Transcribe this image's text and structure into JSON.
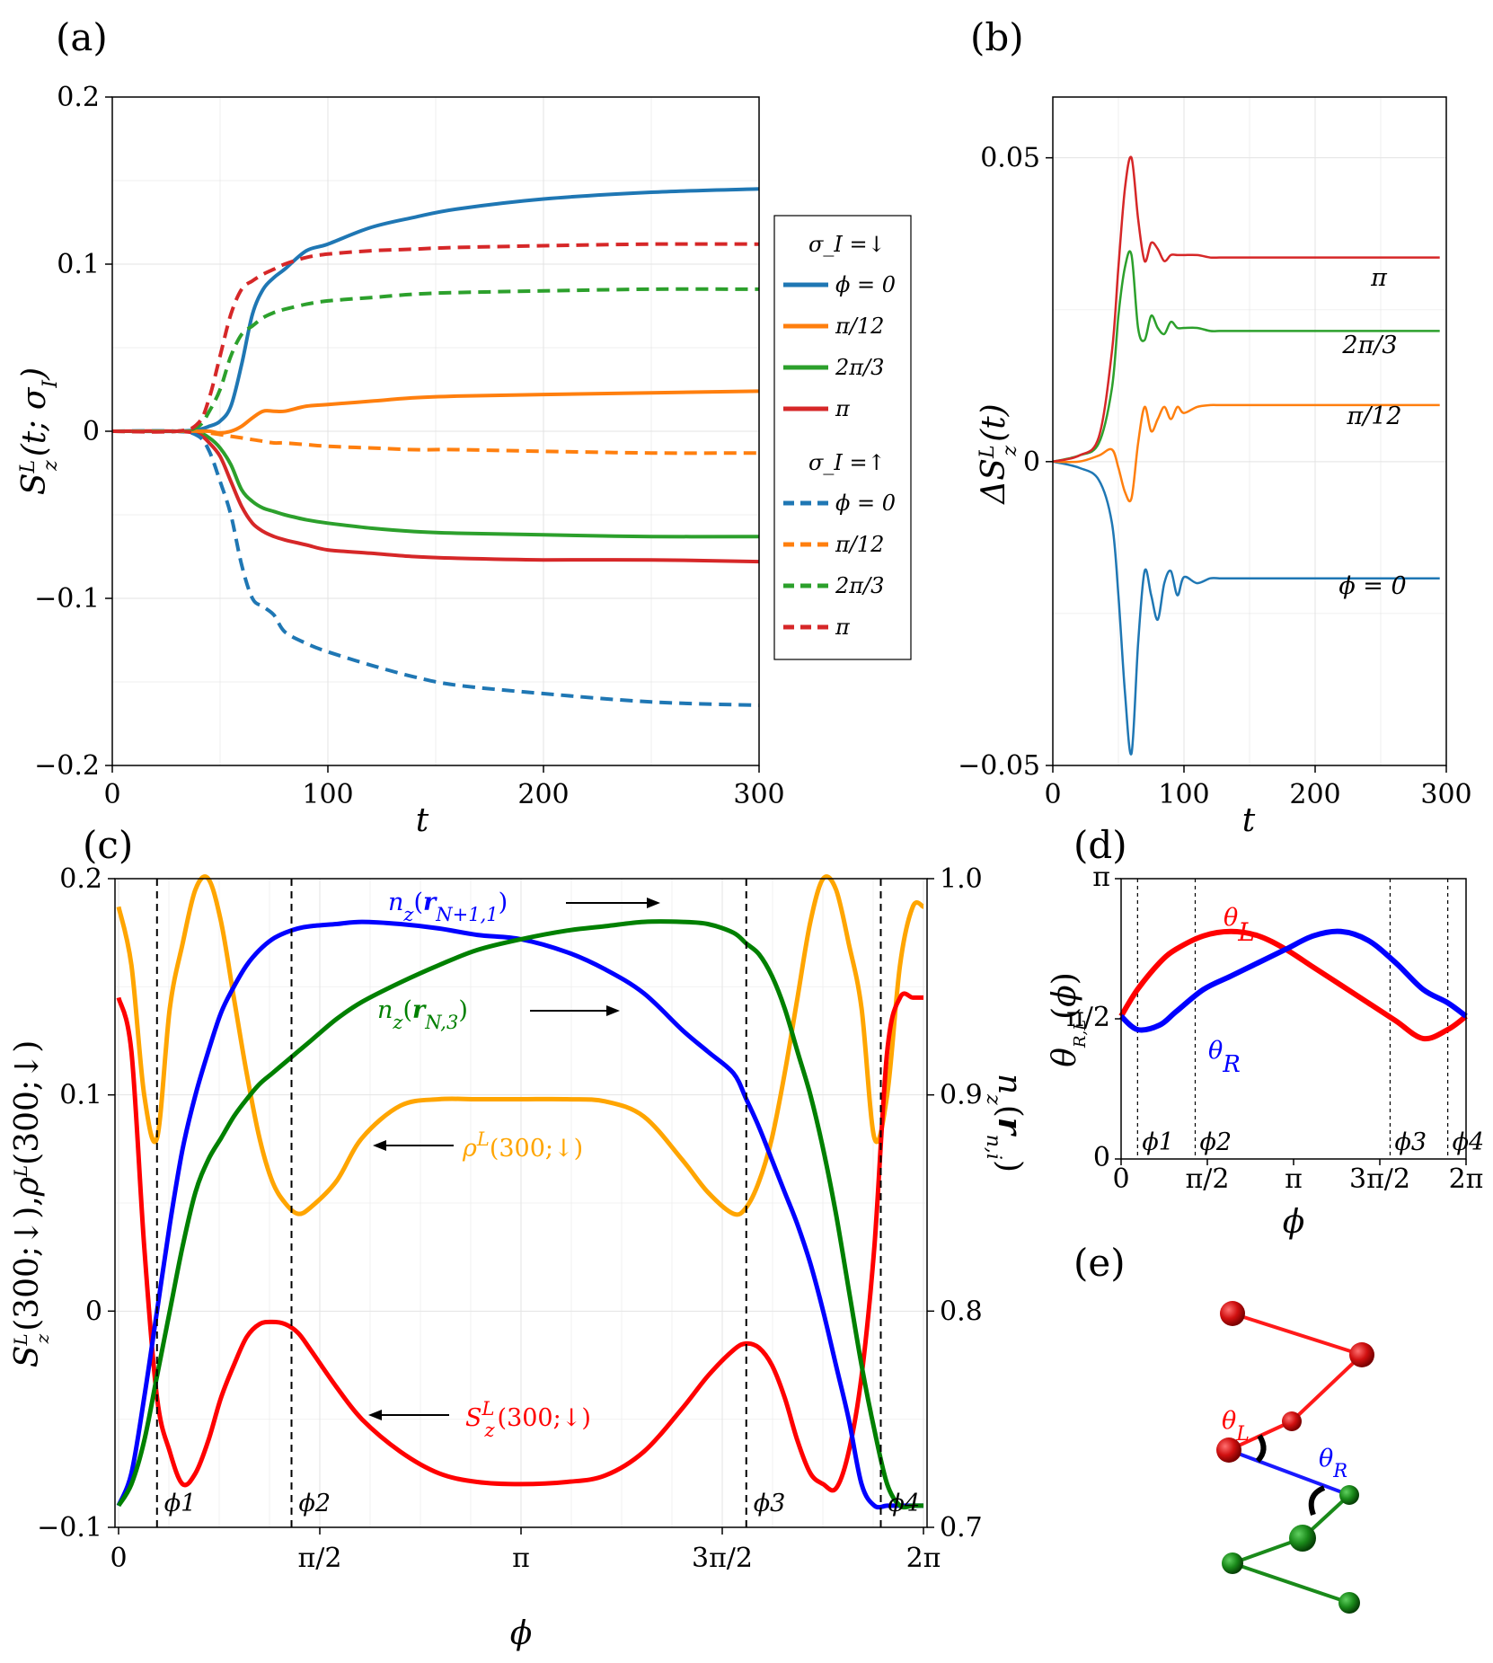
{
  "chart_data": [
    {
      "panel": "(a)",
      "type": "line",
      "xlabel": "t",
      "ylabel": "S_z^L(t; σ_I)",
      "xlim": [
        0,
        300
      ],
      "ylim": [
        -0.2,
        0.2
      ],
      "xticks": [
        "0",
        "100",
        "200",
        "300"
      ],
      "yticks": [
        "−0.2",
        "−0.1",
        "0",
        "0.1",
        "0.2"
      ],
      "legend": {
        "position": "right, outside",
        "group_down": "σ_I =↓",
        "group_up": "σ_I =↑",
        "labels": [
          "ϕ = 0",
          "π/12",
          "2π/3",
          "π"
        ]
      },
      "x": [
        0,
        30,
        40,
        45,
        50,
        55,
        60,
        65,
        70,
        75,
        80,
        90,
        100,
        120,
        140,
        160,
        200,
        250,
        300
      ],
      "series": [
        {
          "name": "ϕ = 0 (σ_I =↓)",
          "color": "#1f77b4",
          "style": "solid",
          "values": [
            0,
            0,
            0.001,
            0.003,
            0.006,
            0.015,
            0.04,
            0.07,
            0.085,
            0.092,
            0.097,
            0.108,
            0.112,
            0.122,
            0.128,
            0.133,
            0.139,
            0.143,
            0.145
          ]
        },
        {
          "name": "π/12 (σ_I =↓)",
          "color": "#ff7f0e",
          "style": "solid",
          "values": [
            0,
            0,
            0,
            0,
            -0.001,
            0,
            0.003,
            0.008,
            0.012,
            0.012,
            0.012,
            0.015,
            0.016,
            0.018,
            0.02,
            0.021,
            0.022,
            0.023,
            0.024
          ]
        },
        {
          "name": "2π/3 (σ_I =↓)",
          "color": "#2ca02c",
          "style": "solid",
          "values": [
            0,
            0,
            -0.001,
            -0.004,
            -0.01,
            -0.02,
            -0.035,
            -0.042,
            -0.046,
            -0.048,
            -0.05,
            -0.053,
            -0.055,
            -0.058,
            -0.06,
            -0.061,
            -0.062,
            -0.063,
            -0.063
          ]
        },
        {
          "name": "π (σ_I =↓)",
          "color": "#d62728",
          "style": "solid",
          "values": [
            0,
            0,
            -0.002,
            -0.007,
            -0.015,
            -0.03,
            -0.045,
            -0.055,
            -0.06,
            -0.063,
            -0.065,
            -0.068,
            -0.071,
            -0.073,
            -0.075,
            -0.076,
            -0.077,
            -0.077,
            -0.078
          ]
        },
        {
          "name": "ϕ = 0 (σ_I =↑)",
          "color": "#1f77b4",
          "style": "dashed",
          "values": [
            0,
            0,
            -0.003,
            -0.012,
            -0.03,
            -0.05,
            -0.08,
            -0.1,
            -0.105,
            -0.11,
            -0.12,
            -0.127,
            -0.132,
            -0.14,
            -0.147,
            -0.152,
            -0.157,
            -0.162,
            -0.164
          ]
        },
        {
          "name": "π/12 (σ_I =↑)",
          "color": "#ff7f0e",
          "style": "dashed",
          "values": [
            0,
            0,
            0,
            -0.001,
            -0.002,
            -0.003,
            -0.004,
            -0.005,
            -0.006,
            -0.007,
            -0.007,
            -0.008,
            -0.009,
            -0.01,
            -0.011,
            -0.011,
            -0.012,
            -0.013,
            -0.013
          ]
        },
        {
          "name": "2π/3 (σ_I =↑)",
          "color": "#2ca02c",
          "style": "dashed",
          "values": [
            0,
            0,
            0.003,
            0.012,
            0.025,
            0.045,
            0.058,
            0.063,
            0.068,
            0.071,
            0.073,
            0.076,
            0.078,
            0.08,
            0.082,
            0.083,
            0.084,
            0.085,
            0.085
          ]
        },
        {
          "name": "π (σ_I =↑)",
          "color": "#d62728",
          "style": "dashed",
          "values": [
            0,
            0,
            0.005,
            0.02,
            0.045,
            0.07,
            0.085,
            0.09,
            0.094,
            0.097,
            0.1,
            0.104,
            0.106,
            0.108,
            0.109,
            0.11,
            0.111,
            0.112,
            0.112
          ]
        }
      ]
    },
    {
      "panel": "(b)",
      "type": "line",
      "xlabel": "t",
      "ylabel": "ΔS_z^L(t)",
      "xlim": [
        0,
        300
      ],
      "ylim": [
        -0.05,
        0.06
      ],
      "xticks": [
        "0",
        "100",
        "200",
        "300"
      ],
      "yticks": [
        "−0.05",
        "0",
        "0.05"
      ],
      "x": [
        0,
        20,
        35,
        45,
        50,
        55,
        60,
        65,
        70,
        75,
        80,
        85,
        90,
        95,
        100,
        110,
        120,
        150,
        200,
        250,
        300
      ],
      "series": [
        {
          "name": "ϕ = 0",
          "color": "#1f77b4",
          "values": [
            0,
            -0.001,
            -0.003,
            -0.01,
            -0.022,
            -0.038,
            -0.048,
            -0.03,
            -0.018,
            -0.022,
            -0.026,
            -0.02,
            -0.018,
            -0.022,
            -0.019,
            -0.02,
            -0.018,
            -0.019,
            -0.018,
            -0.018,
            -0.018
          ]
        },
        {
          "name": "π/12",
          "color": "#ff7f0e",
          "values": [
            0,
            0,
            0.001,
            0.002,
            -0.001,
            -0.005,
            -0.006,
            0.003,
            0.009,
            0.005,
            0.007,
            0.009,
            0.007,
            0.009,
            0.008,
            0.009,
            0.0095,
            0.0095,
            0.01,
            0.01,
            0.01
          ]
        },
        {
          "name": "2π/3",
          "color": "#2ca02c",
          "values": [
            0,
            0.001,
            0.003,
            0.012,
            0.024,
            0.032,
            0.034,
            0.022,
            0.02,
            0.024,
            0.022,
            0.021,
            0.023,
            0.022,
            0.022,
            0.022,
            0.022,
            0.022,
            0.022,
            0.022,
            0.022
          ]
        },
        {
          "name": "π",
          "color": "#d62728",
          "values": [
            0,
            0.001,
            0.004,
            0.018,
            0.032,
            0.045,
            0.05,
            0.04,
            0.033,
            0.036,
            0.035,
            0.033,
            0.034,
            0.034,
            0.034,
            0.034,
            0.034,
            0.034,
            0.034,
            0.034,
            0.034
          ]
        }
      ],
      "annotations": [
        "π",
        "2π/3",
        "π/12",
        "ϕ = 0"
      ]
    },
    {
      "panel": "(c)",
      "type": "line",
      "xlabel": "ϕ",
      "ylabel_left": "S_z^L(300;↓), ρ^L(300;↓)",
      "ylabel_right": "n_z(r_{n,i})",
      "xlim": [
        0,
        6.2832
      ],
      "ylim_left": [
        -0.1,
        0.2
      ],
      "ylim_right": [
        0.7,
        1.0
      ],
      "xticks": [
        "0",
        "π/2",
        "π",
        "3π/2",
        "2π"
      ],
      "yticks_left": [
        "−0.1",
        "0",
        "0.1",
        "0.2"
      ],
      "yticks_right": [
        "0.7",
        "0.8",
        "0.9",
        "1.0"
      ],
      "vlines": {
        "labels": [
          "ϕ1",
          "ϕ2",
          "ϕ3",
          "ϕ4"
        ],
        "values": [
          0.3,
          1.35,
          4.9,
          5.95
        ]
      },
      "x": [
        0,
        0.1,
        0.2,
        0.3,
        0.4,
        0.5,
        0.6,
        0.7,
        0.8,
        0.9,
        1.0,
        1.1,
        1.2,
        1.3,
        1.4,
        1.5,
        1.7,
        1.9,
        2.2,
        2.5,
        2.8,
        3.1416,
        3.5,
        3.8,
        4.1,
        4.4,
        4.6,
        4.8,
        4.9,
        5.0,
        5.1,
        5.2,
        5.3,
        5.4,
        5.5,
        5.6,
        5.7,
        5.8,
        5.9,
        6.0,
        6.1,
        6.2,
        6.2832
      ],
      "series": [
        {
          "name": "ρ^L(300;↓)",
          "label": "ρ^L(300;↓)",
          "color": "#ffa500",
          "axis": "left",
          "values": [
            0.187,
            0.16,
            0.1,
            0.08,
            0.14,
            0.17,
            0.195,
            0.2,
            0.18,
            0.145,
            0.11,
            0.08,
            0.06,
            0.05,
            0.045,
            0.048,
            0.06,
            0.08,
            0.095,
            0.098,
            0.098,
            0.098,
            0.098,
            0.097,
            0.09,
            0.07,
            0.055,
            0.045,
            0.048,
            0.06,
            0.08,
            0.11,
            0.145,
            0.18,
            0.2,
            0.195,
            0.17,
            0.14,
            0.08,
            0.1,
            0.16,
            0.187,
            0.187
          ]
        },
        {
          "name": "S_z^L(300;↓)",
          "label": "S_z^L(300;↓)",
          "color": "#ff0000",
          "axis": "left",
          "values": [
            0.145,
            0.12,
            0.03,
            -0.04,
            -0.065,
            -0.08,
            -0.075,
            -0.06,
            -0.04,
            -0.025,
            -0.012,
            -0.006,
            -0.005,
            -0.006,
            -0.01,
            -0.018,
            -0.035,
            -0.05,
            -0.065,
            -0.075,
            -0.079,
            -0.08,
            -0.079,
            -0.076,
            -0.065,
            -0.045,
            -0.03,
            -0.018,
            -0.015,
            -0.017,
            -0.025,
            -0.04,
            -0.06,
            -0.075,
            -0.08,
            -0.082,
            -0.065,
            -0.03,
            0.03,
            0.12,
            0.145,
            0.145,
            0.145
          ]
        },
        {
          "name": "n_z(r_{N+1,1})",
          "label": "n_z(r_{N+1,1})",
          "color": "#0000ff",
          "axis": "right",
          "values": [
            0.71,
            0.725,
            0.76,
            0.8,
            0.84,
            0.875,
            0.9,
            0.92,
            0.938,
            0.95,
            0.96,
            0.967,
            0.972,
            0.975,
            0.977,
            0.978,
            0.979,
            0.98,
            0.979,
            0.977,
            0.974,
            0.972,
            0.966,
            0.958,
            0.947,
            0.93,
            0.92,
            0.91,
            0.898,
            0.885,
            0.87,
            0.855,
            0.84,
            0.822,
            0.8,
            0.775,
            0.75,
            0.72,
            0.71,
            0.71,
            0.71,
            0.71,
            0.71
          ]
        },
        {
          "name": "n_z(r_{N,3})",
          "label": "n_z(r_{N,3})",
          "color": "#008000",
          "axis": "right",
          "values": [
            0.71,
            0.72,
            0.74,
            0.77,
            0.8,
            0.83,
            0.855,
            0.87,
            0.88,
            0.89,
            0.898,
            0.905,
            0.91,
            0.915,
            0.92,
            0.925,
            0.935,
            0.943,
            0.952,
            0.96,
            0.967,
            0.972,
            0.976,
            0.978,
            0.98,
            0.98,
            0.979,
            0.975,
            0.97,
            0.965,
            0.955,
            0.94,
            0.92,
            0.9,
            0.875,
            0.845,
            0.81,
            0.775,
            0.745,
            0.72,
            0.71,
            0.71,
            0.71
          ]
        }
      ]
    },
    {
      "panel": "(d)",
      "type": "line",
      "xlabel": "ϕ",
      "ylabel": "θ_{R,L}(ϕ)",
      "xlim": [
        0,
        6.2832
      ],
      "ylim": [
        0,
        3.1416
      ],
      "xticks": [
        "0",
        "π/2",
        "π",
        "3π/2",
        "2π"
      ],
      "yticks": [
        "0",
        "π/2",
        "π"
      ],
      "vlines": {
        "labels": [
          "ϕ1",
          "ϕ2",
          "ϕ3",
          "ϕ4"
        ],
        "values": [
          0.3,
          1.35,
          4.9,
          5.95
        ]
      },
      "x": [
        0,
        0.3,
        0.7,
        1.0,
        1.5,
        2.0,
        2.5,
        3.0,
        3.5,
        4.0,
        4.5,
        5.0,
        5.5,
        5.95,
        6.2832
      ],
      "series": [
        {
          "name": "θ_L",
          "color": "#ff0000",
          "values": [
            1.6,
            1.9,
            2.2,
            2.35,
            2.5,
            2.55,
            2.5,
            2.35,
            2.15,
            1.95,
            1.75,
            1.55,
            1.35,
            1.45,
            1.6
          ]
        },
        {
          "name": "θ_R",
          "color": "#0000ff",
          "values": [
            1.6,
            1.45,
            1.5,
            1.65,
            1.9,
            2.05,
            2.2,
            2.35,
            2.5,
            2.55,
            2.45,
            2.2,
            1.9,
            1.75,
            1.6
          ]
        }
      ]
    }
  ],
  "panel_e": {
    "tag": "(e)",
    "label_left": "θ_L",
    "label_right": "θ_R"
  }
}
